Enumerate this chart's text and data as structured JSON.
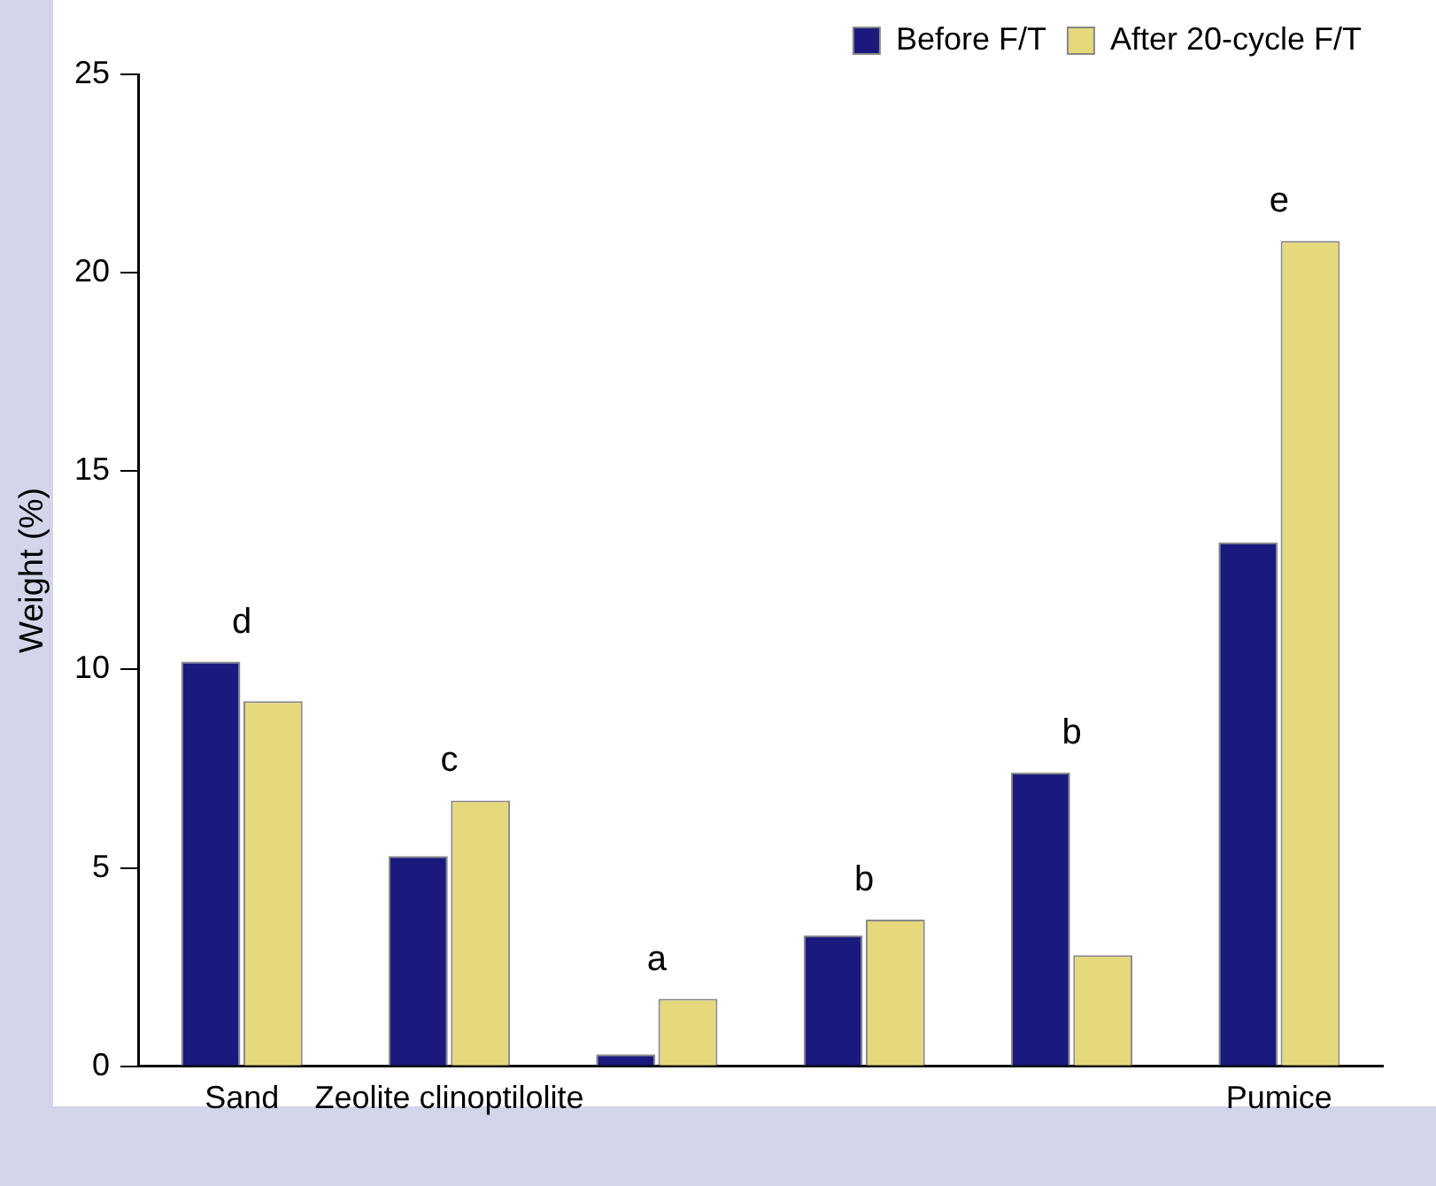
{
  "chart_data": {
    "type": "bar",
    "ylabel": "Weight (%)",
    "categories": [
      "Sand",
      "Zeolite clinoptilolite",
      null,
      null,
      null,
      "Pumice"
    ],
    "series": [
      {
        "name": "Before F/T",
        "color": "#1a1a7e",
        "values": [
          10.2,
          5.3,
          0.3,
          3.3,
          7.4,
          13.2
        ]
      },
      {
        "name": "After 20-cycle F/T",
        "color": "#e6d87c",
        "values": [
          9.2,
          6.7,
          1.7,
          3.7,
          2.8,
          20.8
        ]
      }
    ],
    "ylim": [
      0,
      25
    ],
    "yticks": [
      0,
      5,
      10,
      15,
      20,
      25
    ],
    "grid": false,
    "legend": "top right",
    "annotations": [
      {
        "text": "d",
        "x": "Sand",
        "y": 10.2
      },
      {
        "text": "c",
        "x": "Zeolite clinoptilolite",
        "y": 6.7
      },
      {
        "text": "a",
        "y": 1.7
      },
      {
        "text": "b",
        "y": 3.7
      },
      {
        "text": "b",
        "y": 7.4
      },
      {
        "text": "e",
        "x": "Pumice",
        "y": 20.8
      }
    ]
  }
}
